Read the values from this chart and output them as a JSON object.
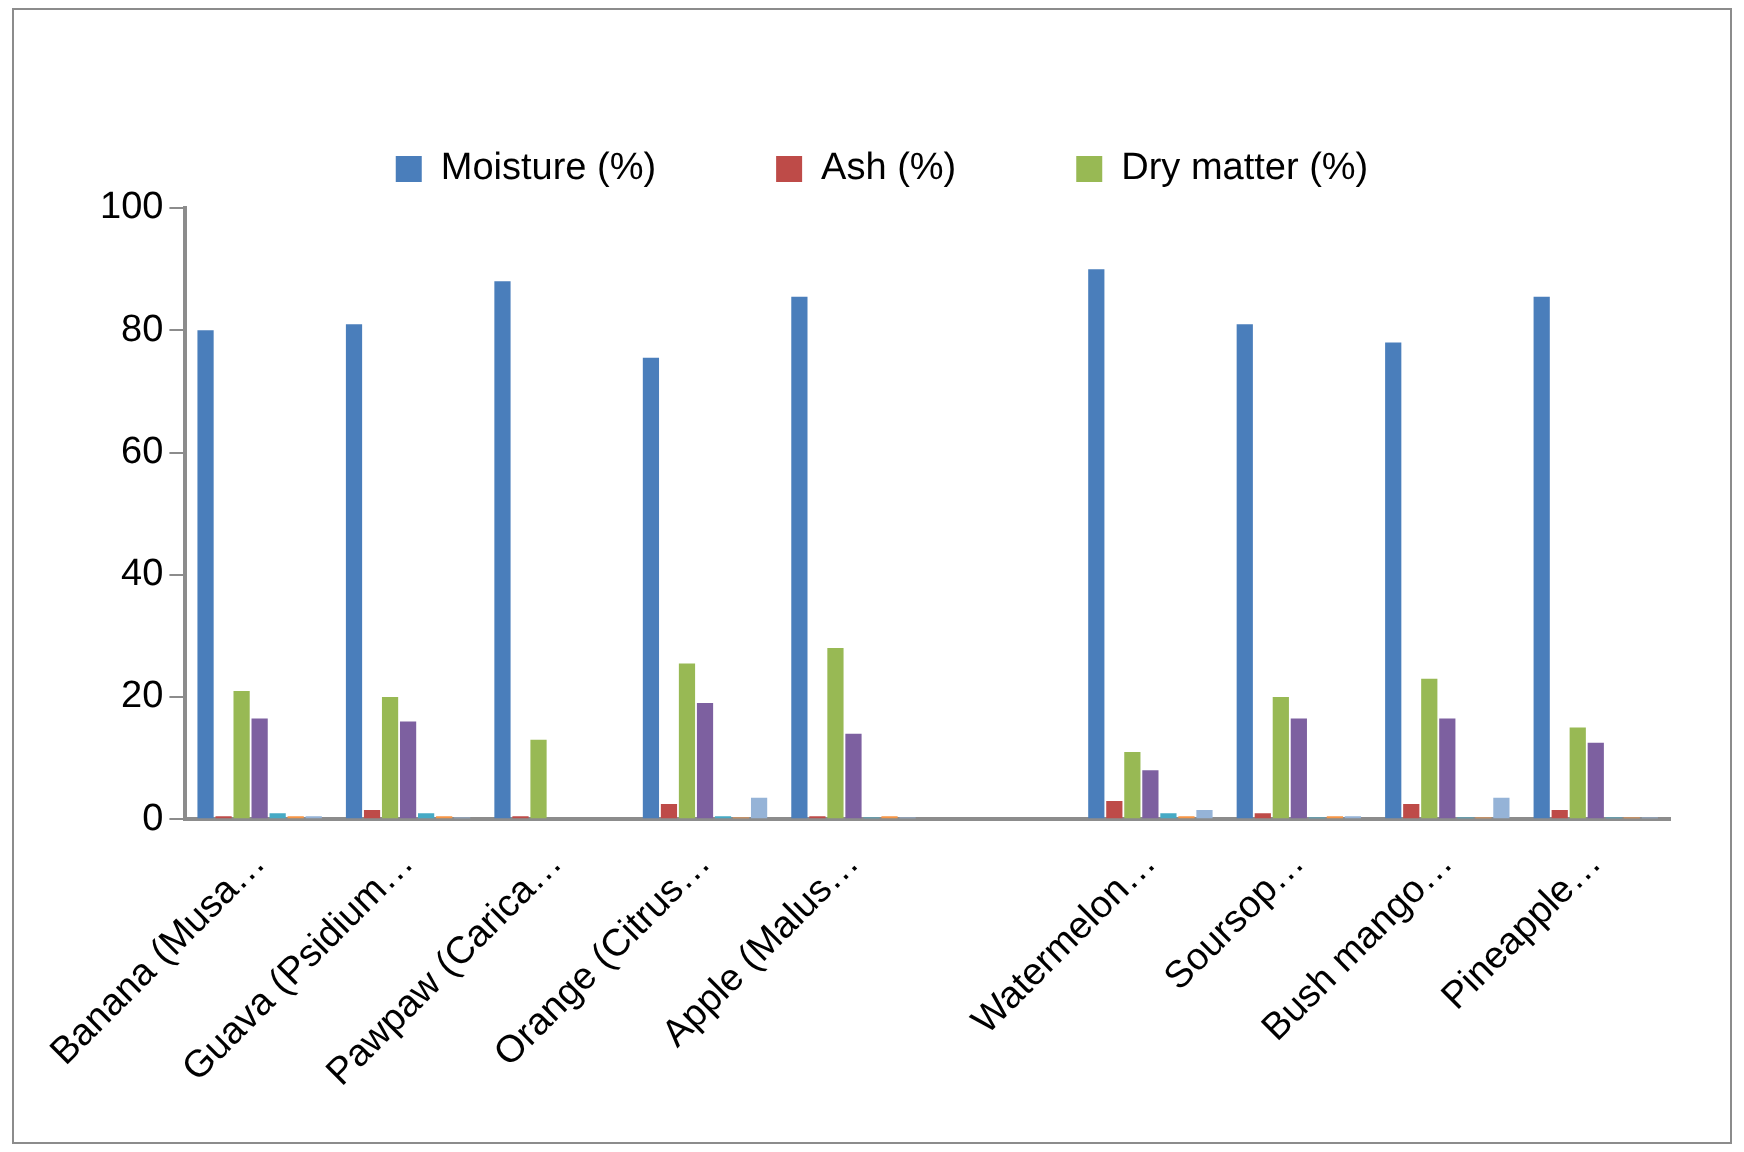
{
  "chart_data": {
    "type": "bar",
    "categories": [
      "Banana (Musa…",
      "Guava (Psidium…",
      "Pawpaw (Carica…",
      "Orange (Citrus…",
      "Apple (Malus…",
      null,
      "Watermelon…",
      "Soursop…",
      "Bush mango…",
      "Pineapple…"
    ],
    "series": [
      {
        "name": "Moisture (%)",
        "color": "#4a7ebb",
        "values": [
          80,
          81,
          88,
          75.5,
          85.5,
          null,
          90,
          81,
          78,
          85.5
        ]
      },
      {
        "name": "Ash (%)",
        "color": "#be4b48",
        "values": [
          0.5,
          1.5,
          0.5,
          2.5,
          0.5,
          null,
          3,
          1,
          2.5,
          1.5
        ]
      },
      {
        "name": "Dry matter (%)",
        "color": "#98b954",
        "values": [
          21,
          20,
          13,
          25.5,
          28,
          null,
          11,
          20,
          23,
          15
        ]
      },
      {
        "color": "#7d60a0",
        "values": [
          16.5,
          16,
          null,
          19,
          14,
          null,
          8,
          16.5,
          16.5,
          12.5
        ]
      },
      {
        "color": "#46aac5",
        "values": [
          1,
          1,
          null,
          0.5,
          0.3,
          null,
          1,
          0.3,
          0.3,
          0.3
        ]
      },
      {
        "color": "#f79646",
        "values": [
          0.5,
          0.5,
          null,
          0.3,
          0.5,
          null,
          0.5,
          0.5,
          0.3,
          0.3
        ]
      },
      {
        "color": "#95b3d7",
        "values": [
          0.5,
          0.3,
          null,
          3.5,
          0.3,
          null,
          1.5,
          0.5,
          3.5,
          0.3
        ]
      }
    ],
    "ylim": [
      0,
      100
    ],
    "yticks": [
      0,
      20,
      40,
      60,
      80,
      100
    ],
    "grid": false,
    "legend": "top"
  }
}
